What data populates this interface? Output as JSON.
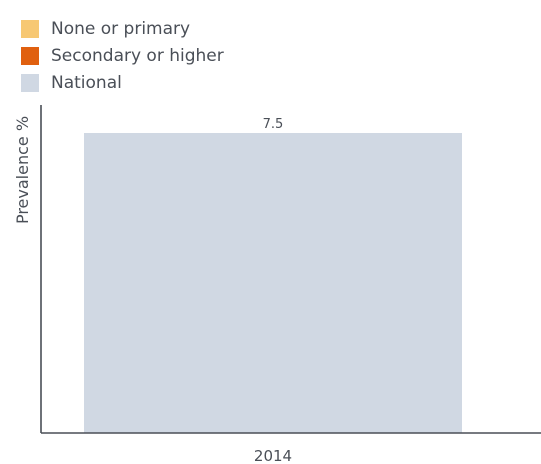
{
  "chart_data": {
    "type": "bar",
    "title": "",
    "xlabel": "",
    "ylabel": "Prevalence %",
    "categories": [
      "2014"
    ],
    "series": [
      {
        "name": "None or primary",
        "color": "#f7c873",
        "values": [
          null
        ]
      },
      {
        "name": "Secondary or higher",
        "color": "#e0600f",
        "values": [
          null
        ]
      },
      {
        "name": "National",
        "color": "#d0d8e3",
        "values": [
          7.5
        ]
      }
    ],
    "data_labels": [
      "7.5"
    ],
    "ylim": [
      0,
      7.5
    ],
    "grid": false,
    "legend_position": "top-left"
  }
}
